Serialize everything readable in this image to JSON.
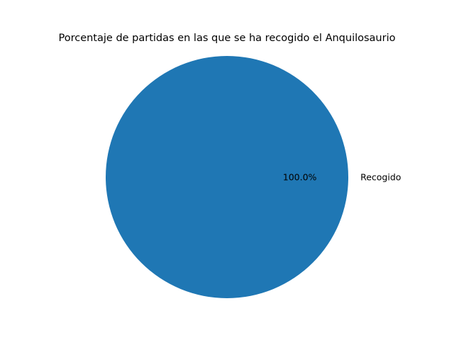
{
  "chart_data": {
    "type": "pie",
    "title": "Porcentaje de partidas en las que se ha recogido el Anquilosaurio",
    "slices": [
      {
        "label": "Recogido",
        "value": 100,
        "percent_label": "100.0%",
        "color": "#1f77b4"
      }
    ]
  }
}
